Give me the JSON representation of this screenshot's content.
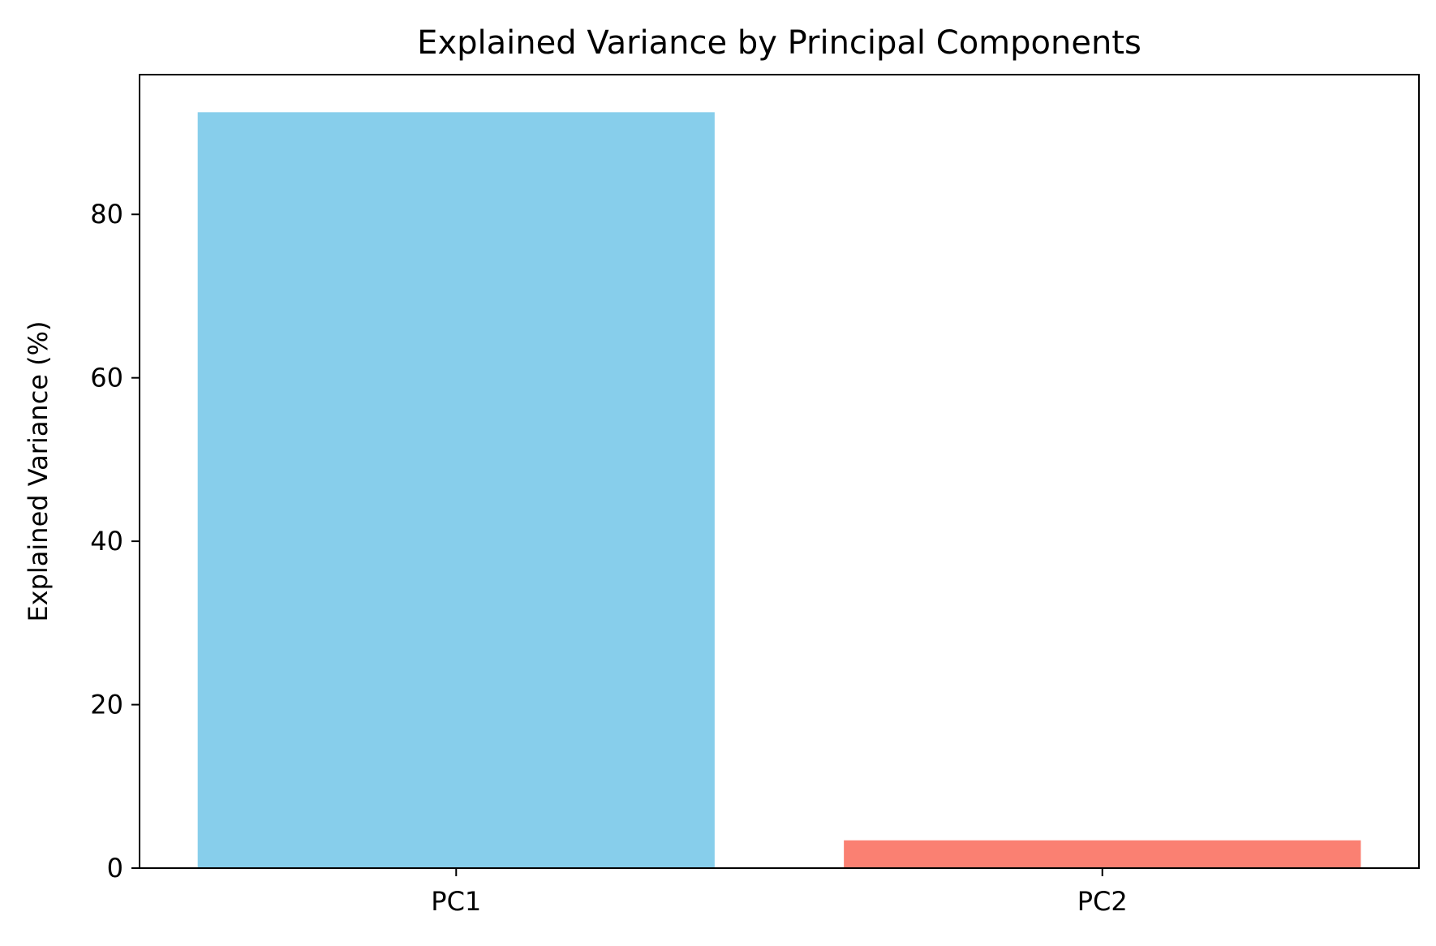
{
  "chart_data": {
    "type": "bar",
    "title": "Explained Variance by Principal Components",
    "xlabel": "",
    "ylabel": "Explained Variance (%)",
    "categories": [
      "PC1",
      "PC2"
    ],
    "values": [
      92.5,
      3.4
    ],
    "colors": [
      "#87CEEB",
      "#FA8072"
    ],
    "ylim": [
      0,
      97.1
    ],
    "yticks": [
      0,
      20,
      40,
      60,
      80
    ],
    "ytick_labels": [
      "0",
      "20",
      "40",
      "60",
      "80"
    ],
    "grid": false,
    "legend": "none"
  }
}
